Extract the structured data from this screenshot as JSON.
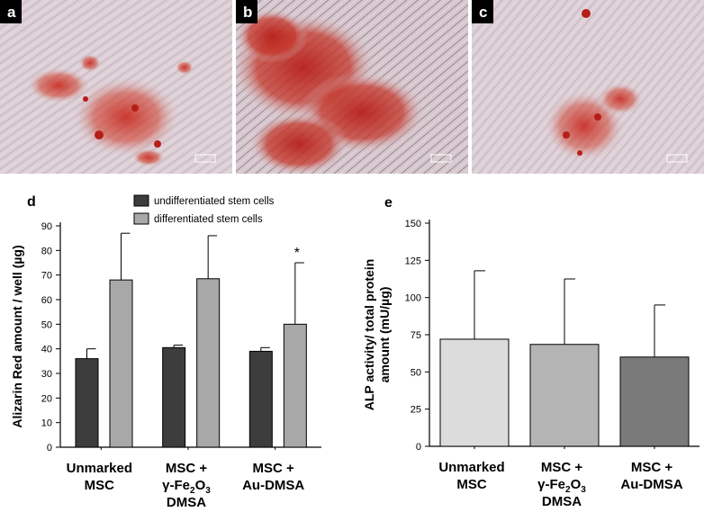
{
  "panels": [
    {
      "letter": "a"
    },
    {
      "letter": "b"
    },
    {
      "letter": "c"
    }
  ],
  "colors": {
    "undifferentiated": "#3d3d3d",
    "differentiated": "#a8a8a8",
    "unmarked": "#dcdcdc",
    "fe2o3": "#b4b4b4",
    "au": "#7a7a7a",
    "stain": "#c8281e",
    "background_tissue": "#d9cdd3"
  },
  "chart_data": [
    {
      "panel_label": "d",
      "type": "bar",
      "ylabel": "Alizarin Red amount / well  (µg)",
      "ylim": [
        0,
        90
      ],
      "yticks": [
        0,
        10,
        20,
        30,
        40,
        50,
        60,
        70,
        80,
        90
      ],
      "categories": [
        [
          "Unmarked",
          "MSC"
        ],
        [
          "MSC +",
          "γ-Fe2O3",
          "DMSA"
        ],
        [
          "MSC +",
          "Au-DMSA"
        ]
      ],
      "legend": [
        "undifferentiated stem cells",
        "differentiated stem cells"
      ],
      "legend_position": "top",
      "series": [
        {
          "name": "undifferentiated stem cells",
          "values": [
            36,
            40.5,
            39
          ],
          "errors": [
            4,
            1,
            1.5
          ]
        },
        {
          "name": "differentiated stem cells",
          "values": [
            68,
            68.5,
            50
          ],
          "errors": [
            19,
            17.5,
            25
          ]
        }
      ],
      "annotations": [
        {
          "text": "*",
          "category_index": 2,
          "series_index": 1
        }
      ]
    },
    {
      "panel_label": "e",
      "type": "bar",
      "ylabel": "ALP activity/ total protein amount (mU/µg)",
      "ylim": [
        0,
        150
      ],
      "yticks": [
        0,
        25,
        50,
        75,
        100,
        125,
        150
      ],
      "categories": [
        [
          "Unmarked",
          "MSC"
        ],
        [
          "MSC +",
          "γ-Fe2O3",
          "DMSA"
        ],
        [
          "MSC +",
          "Au-DMSA"
        ]
      ],
      "series": [
        {
          "values": [
            72,
            68.5,
            60
          ],
          "errors": [
            46,
            44,
            35
          ]
        }
      ]
    }
  ]
}
